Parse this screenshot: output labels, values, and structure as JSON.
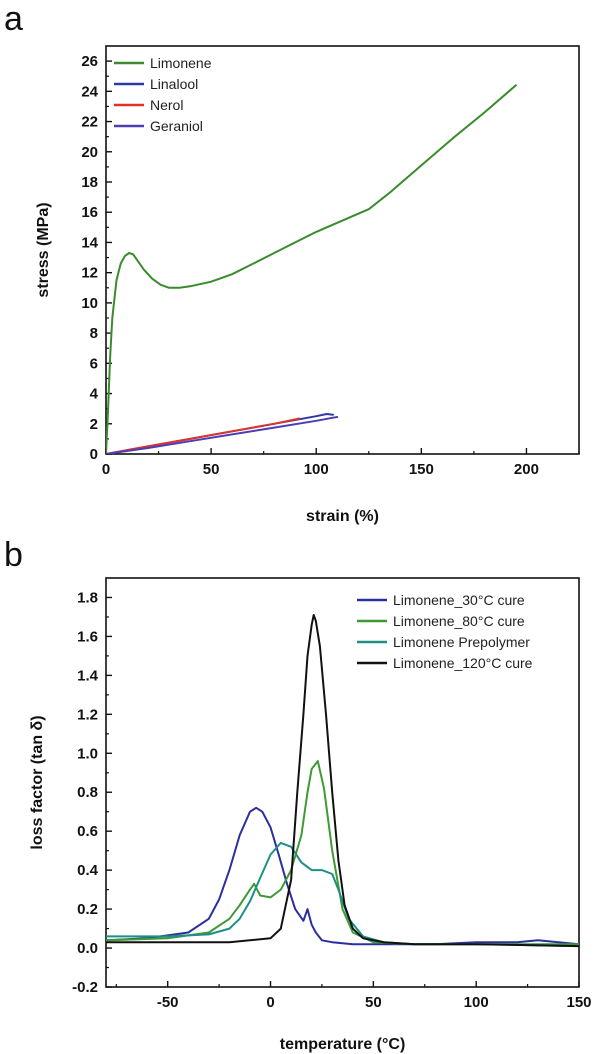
{
  "chart_data": [
    {
      "panel": "a",
      "type": "line",
      "title": "",
      "xlabel": "strain (%)",
      "ylabel": "stress (MPa)",
      "xlim": [
        0,
        225
      ],
      "ylim": [
        0,
        27
      ],
      "xticks": [
        0,
        50,
        100,
        150,
        200
      ],
      "yticks": [
        0,
        2,
        4,
        6,
        8,
        10,
        12,
        14,
        16,
        18,
        20,
        22,
        24,
        26
      ],
      "legend": "top-left",
      "grid": false,
      "series": [
        {
          "name": "Limonene",
          "color": "#3b8a2e",
          "x": [
            0,
            1,
            2,
            3,
            5,
            7,
            9,
            11,
            13,
            15,
            18,
            22,
            26,
            30,
            35,
            40,
            50,
            60,
            70,
            80,
            90,
            100,
            110,
            120,
            125,
            135,
            150,
            165,
            180,
            195
          ],
          "y": [
            0,
            3,
            6.5,
            9,
            11.5,
            12.6,
            13.1,
            13.3,
            13.2,
            12.8,
            12.2,
            11.6,
            11.2,
            11.0,
            11.0,
            11.1,
            11.4,
            11.9,
            12.6,
            13.3,
            14.0,
            14.7,
            15.3,
            15.9,
            16.2,
            17.3,
            19.1,
            20.9,
            22.6,
            24.4
          ]
        },
        {
          "name": "Linalool",
          "color": "#2a3aa8",
          "x": [
            0,
            20,
            40,
            60,
            80,
            100,
            105,
            108
          ],
          "y": [
            0,
            0.5,
            1.0,
            1.5,
            2.0,
            2.5,
            2.65,
            2.6
          ]
        },
        {
          "name": "Nerol",
          "color": "#e0322b",
          "x": [
            0,
            20,
            40,
            60,
            80,
            92
          ],
          "y": [
            0,
            0.5,
            1.0,
            1.5,
            2.0,
            2.35
          ]
        },
        {
          "name": "Geraniol",
          "color": "#4a3fb5",
          "x": [
            0,
            20,
            40,
            60,
            80,
            100,
            108,
            110
          ],
          "y": [
            0,
            0.4,
            0.85,
            1.3,
            1.75,
            2.2,
            2.4,
            2.45
          ]
        }
      ]
    },
    {
      "panel": "b",
      "type": "line",
      "title": "",
      "xlabel": "temperature (°C)",
      "ylabel": "loss factor (tan δ)",
      "xlim": [
        -80,
        150
      ],
      "ylim": [
        -0.2,
        1.9
      ],
      "xticks": [
        -50,
        0,
        50,
        100,
        150
      ],
      "yticks": [
        -0.2,
        0.0,
        0.2,
        0.4,
        0.6,
        0.8,
        1.0,
        1.2,
        1.4,
        1.6,
        1.8
      ],
      "legend": "top-right",
      "grid": false,
      "series": [
        {
          "name": "Limonene_30°C cure",
          "color": "#2b2f9e",
          "x": [
            -80,
            -60,
            -40,
            -30,
            -25,
            -20,
            -15,
            -10,
            -7,
            -4,
            0,
            4,
            8,
            12,
            16,
            18,
            20,
            22,
            25,
            30,
            40,
            60,
            80,
            100,
            120,
            130,
            140,
            150
          ],
          "y": [
            0.04,
            0.05,
            0.08,
            0.15,
            0.25,
            0.4,
            0.58,
            0.7,
            0.72,
            0.7,
            0.62,
            0.48,
            0.33,
            0.2,
            0.14,
            0.2,
            0.12,
            0.08,
            0.04,
            0.03,
            0.02,
            0.02,
            0.02,
            0.03,
            0.03,
            0.04,
            0.03,
            0.02
          ]
        },
        {
          "name": "Limonene_80°C cure",
          "color": "#3f9a35",
          "x": [
            -80,
            -50,
            -30,
            -20,
            -15,
            -10,
            -8,
            -5,
            0,
            5,
            10,
            15,
            18,
            20,
            23,
            26,
            30,
            35,
            40,
            50,
            70,
            100,
            150
          ],
          "y": [
            0.04,
            0.05,
            0.08,
            0.15,
            0.22,
            0.3,
            0.33,
            0.27,
            0.26,
            0.3,
            0.4,
            0.58,
            0.8,
            0.92,
            0.96,
            0.82,
            0.5,
            0.2,
            0.08,
            0.03,
            0.02,
            0.02,
            0.02
          ]
        },
        {
          "name": "Limonene Prepolymer",
          "color": "#1f8f86",
          "x": [
            -80,
            -50,
            -30,
            -20,
            -15,
            -10,
            -5,
            0,
            5,
            10,
            15,
            20,
            25,
            30,
            33,
            38,
            45,
            55,
            70,
            100,
            150
          ],
          "y": [
            0.06,
            0.06,
            0.07,
            0.1,
            0.15,
            0.24,
            0.36,
            0.48,
            0.54,
            0.52,
            0.44,
            0.4,
            0.4,
            0.38,
            0.3,
            0.15,
            0.06,
            0.03,
            0.02,
            0.02,
            0.01
          ]
        },
        {
          "name": "Limonene_120°C cure",
          "color": "#111111",
          "x": [
            -80,
            -40,
            -20,
            0,
            5,
            10,
            13,
            16,
            18,
            20,
            21,
            22,
            24,
            27,
            30,
            33,
            36,
            40,
            45,
            55,
            70,
            100,
            150
          ],
          "y": [
            0.03,
            0.03,
            0.03,
            0.05,
            0.1,
            0.35,
            0.8,
            1.2,
            1.5,
            1.66,
            1.71,
            1.68,
            1.55,
            1.2,
            0.8,
            0.45,
            0.22,
            0.1,
            0.05,
            0.03,
            0.02,
            0.02,
            0.01
          ]
        }
      ]
    }
  ]
}
